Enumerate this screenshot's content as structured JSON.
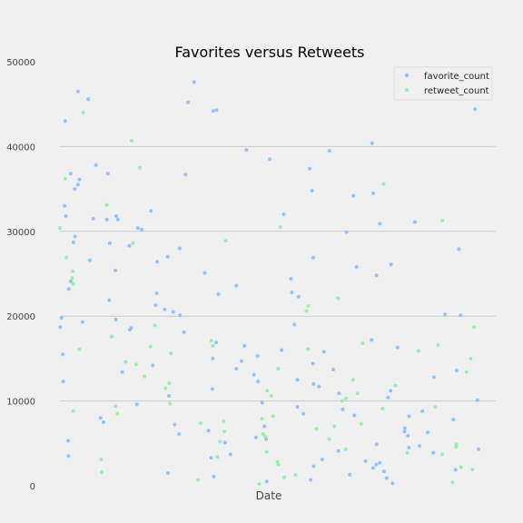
{
  "chart_data": {
    "type": "scatter",
    "title": "Favorites versus Retweets",
    "xlabel": "Date",
    "ylabel": "",
    "ylim": [
      0,
      50000
    ],
    "yticks": [
      0,
      10000,
      20000,
      30000,
      40000,
      50000
    ],
    "grid": "horizontal",
    "legend_position": "top-right",
    "series": [
      {
        "name": "favorite_count",
        "color": "#8ec3ff",
        "y": [
          47600,
          46500,
          45200,
          44400,
          44300,
          44200,
          43000,
          40400,
          39600,
          39500,
          38500,
          37800,
          37400,
          36800,
          36700,
          35500,
          35000,
          34800,
          34500,
          34200,
          33000,
          32400,
          32000,
          31800,
          31500,
          31400,
          31100,
          30900,
          30400,
          30200,
          29900,
          29400,
          28700,
          28600,
          28300,
          28000,
          27900,
          27000,
          26900,
          26600,
          26400,
          26100,
          25800,
          25400,
          25100,
          24800,
          24400,
          24100,
          23600,
          23200,
          22800,
          22700,
          22300,
          21900,
          21300,
          20800,
          20500,
          20200,
          20100,
          19800,
          19600,
          19300,
          19000,
          18700,
          18600,
          18400,
          18100,
          17600,
          17200,
          16900,
          16500,
          16300,
          16000,
          15800,
          15500,
          15300,
          15000,
          14700,
          14400,
          14200,
          13800,
          13600,
          13400,
          13100,
          12800,
          12500,
          12300,
          12000,
          11700,
          11400,
          11200,
          10900,
          10600,
          10400,
          10100,
          9800,
          9600,
          9300,
          9000,
          8800,
          8500,
          8300,
          8000,
          7800,
          7500,
          7200,
          7000,
          6800,
          6500,
          6300,
          6100,
          5900,
          5700,
          5500,
          5300,
          5100,
          4900,
          4700,
          4500,
          4300,
          4100,
          3900,
          3700,
          3500,
          3300,
          3100,
          2900,
          2700,
          2500,
          2300,
          2100,
          1900,
          1700,
          1500,
          1300,
          1100,
          900,
          700,
          500,
          300,
          45600,
          36800,
          36100,
          31400,
          31800,
          22600,
          20100,
          13700,
          12300,
          8200,
          6400
        ]
      },
      {
        "name": "retweet_count",
        "color": "#97f0aa",
        "y": [
          44000,
          40700,
          37500,
          36200,
          35600,
          33100,
          30400,
          28900,
          28600,
          26900,
          25300,
          24500,
          23800,
          22100,
          21200,
          20600,
          18900,
          17600,
          17100,
          16600,
          16400,
          16100,
          15900,
          15600,
          15000,
          14600,
          14300,
          13800,
          13400,
          12900,
          12500,
          12100,
          11800,
          11500,
          11200,
          10900,
          10600,
          10300,
          10000,
          9700,
          9400,
          9100,
          8800,
          8500,
          8200,
          7900,
          7600,
          7300,
          7000,
          6700,
          6400,
          6100,
          5800,
          5500,
          5200,
          4900,
          4600,
          4300,
          4000,
          3700,
          3400,
          3100,
          2800,
          2500,
          2200,
          1900,
          1600,
          1300,
          1000,
          700,
          400,
          200,
          31300,
          30500,
          18700,
          16800,
          16500,
          16100,
          9300,
          7400,
          3900
        ]
      }
    ]
  }
}
